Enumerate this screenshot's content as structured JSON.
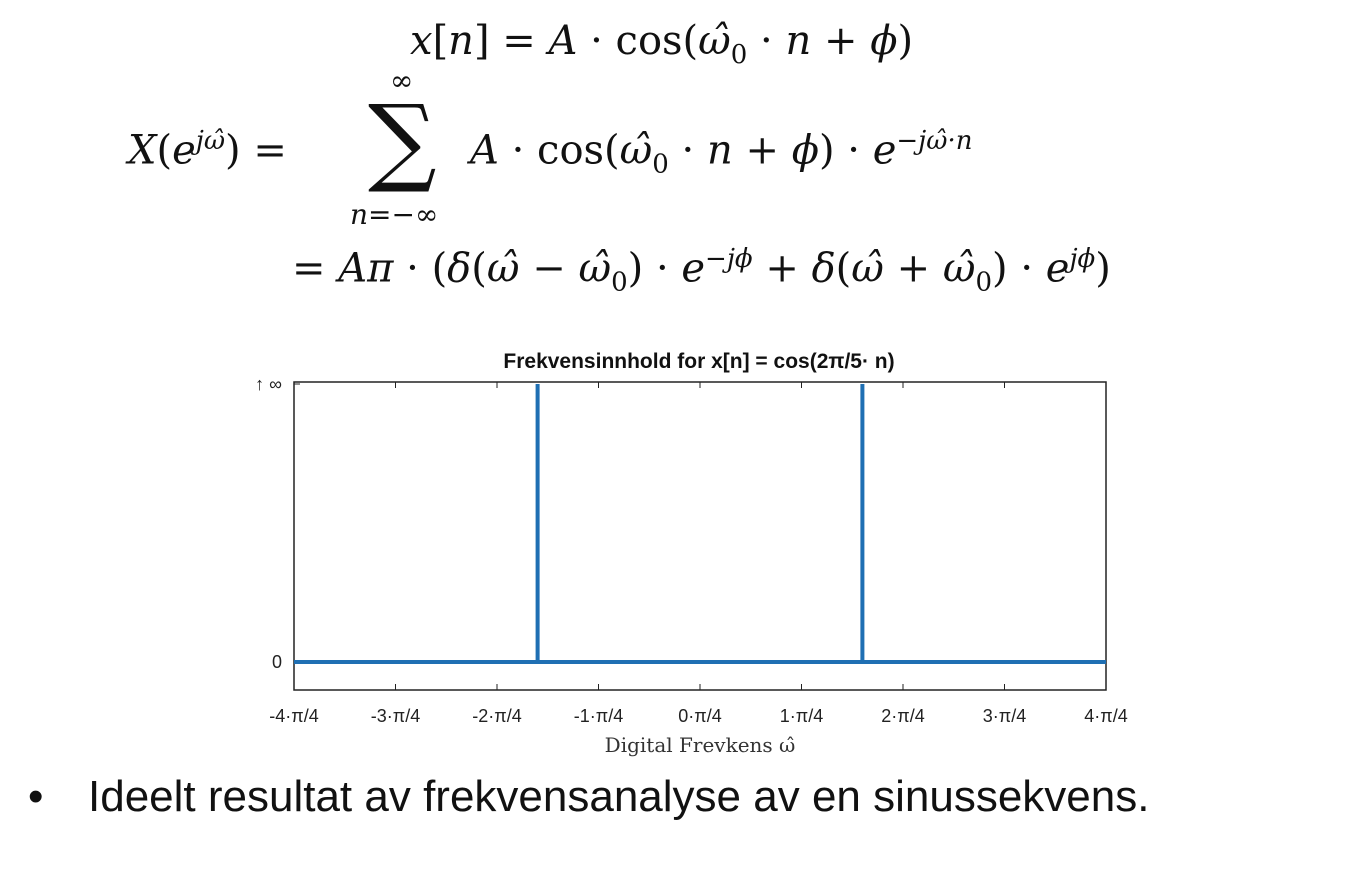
{
  "equations": {
    "signal": "x[n] = A · cos(ω̂₀ · n + φ)",
    "dtft_lhs": "X(e^{jω̂}) =",
    "sum_upper": "∞",
    "sum_lower": "n=−∞",
    "dtft_term": "A · cos(ω̂₀ · n + φ) · e^{−jω̂·n}",
    "result": "= Aπ · (δ(ω̂ − ω̂₀) · e^{−jφ} + δ(ω̂ + ω̂₀) · e^{jφ})"
  },
  "chart_data": {
    "type": "line",
    "title": "Frekvensinnhold for x[n] = cos(2π/5· n)",
    "xlabel": "Digital Frevkens ω̂",
    "ylabel": "",
    "x_units": "π/4",
    "xlim": [
      -4,
      4
    ],
    "x_ticks": [
      -4,
      -3,
      -2,
      -1,
      0,
      1,
      2,
      3,
      4
    ],
    "x_tick_labels": [
      "-4·π/4",
      "-3·π/4",
      "-2·π/4",
      "-1·π/4",
      "0·π/4",
      "1·π/4",
      "2·π/4",
      "3·π/4",
      "4·π/4"
    ],
    "y_tick_labels": [
      "0",
      "↑ ∞"
    ],
    "ylim": [
      0,
      1
    ],
    "series": [
      {
        "color": "#1f6fb3",
        "x": [
          -4,
          -1.6,
          -1.6,
          -1.6,
          1.6,
          1.6,
          1.6,
          4
        ],
        "y": [
          0,
          0,
          1,
          0,
          0,
          1,
          0,
          0
        ]
      }
    ],
    "grid": false
  },
  "bullet": {
    "symbol": "•",
    "text": "Ideelt resultat av frekvensanalyse av en sinussekvens."
  }
}
